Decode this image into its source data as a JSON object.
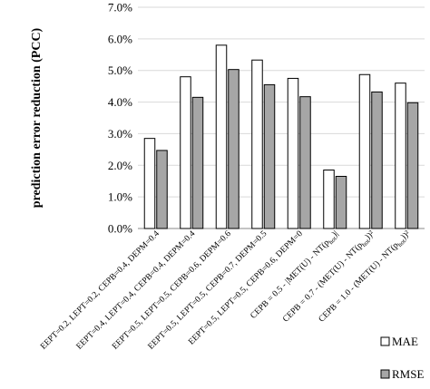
{
  "chart_data": {
    "type": "bar",
    "title": "",
    "xlabel": "",
    "ylabel": "prediction error reduction (PCC)",
    "ylim": [
      0,
      7.0
    ],
    "yticks": [
      "0.0%",
      "1.0%",
      "2.0%",
      "3.0%",
      "4.0%",
      "5.0%",
      "6.0%",
      "7.0%"
    ],
    "grid": true,
    "legend_position": "bottom-right",
    "categories": [
      "EEPT=0.2, LEPT=0.2, CEPB=0.4, DEPM=0.4",
      "EEPT=0.4, LEPT=0.4, CEPB=0.4, DEPM=0.4",
      "EEPT=0.5, LEPT=0.5, CEPB=0.6, DEPM=0.6",
      "EEPT=0.5, LEPT=0.5, CEPB=0.7, DEPM=0.5",
      "EEPT=0.5, LEPT=0.5, CEPB=0.6, DEPM=0",
      "CEPB = 0.5 - |MET(U) - NT(p_hot)|",
      "CEPB = 0.7 - (MET(U) - NT(p_hot))²",
      "CEPB = 1.0 - (MET(U) - NT(p_hot))²"
    ],
    "series": [
      {
        "name": "MAE",
        "color": "#ffffff",
        "values": [
          2.85,
          4.8,
          5.8,
          5.33,
          4.75,
          1.85,
          4.87,
          4.6
        ]
      },
      {
        "name": "RMSE",
        "color": "#a6a6a6",
        "values": [
          2.47,
          4.15,
          5.03,
          4.55,
          4.17,
          1.65,
          4.32,
          3.98
        ]
      }
    ]
  }
}
